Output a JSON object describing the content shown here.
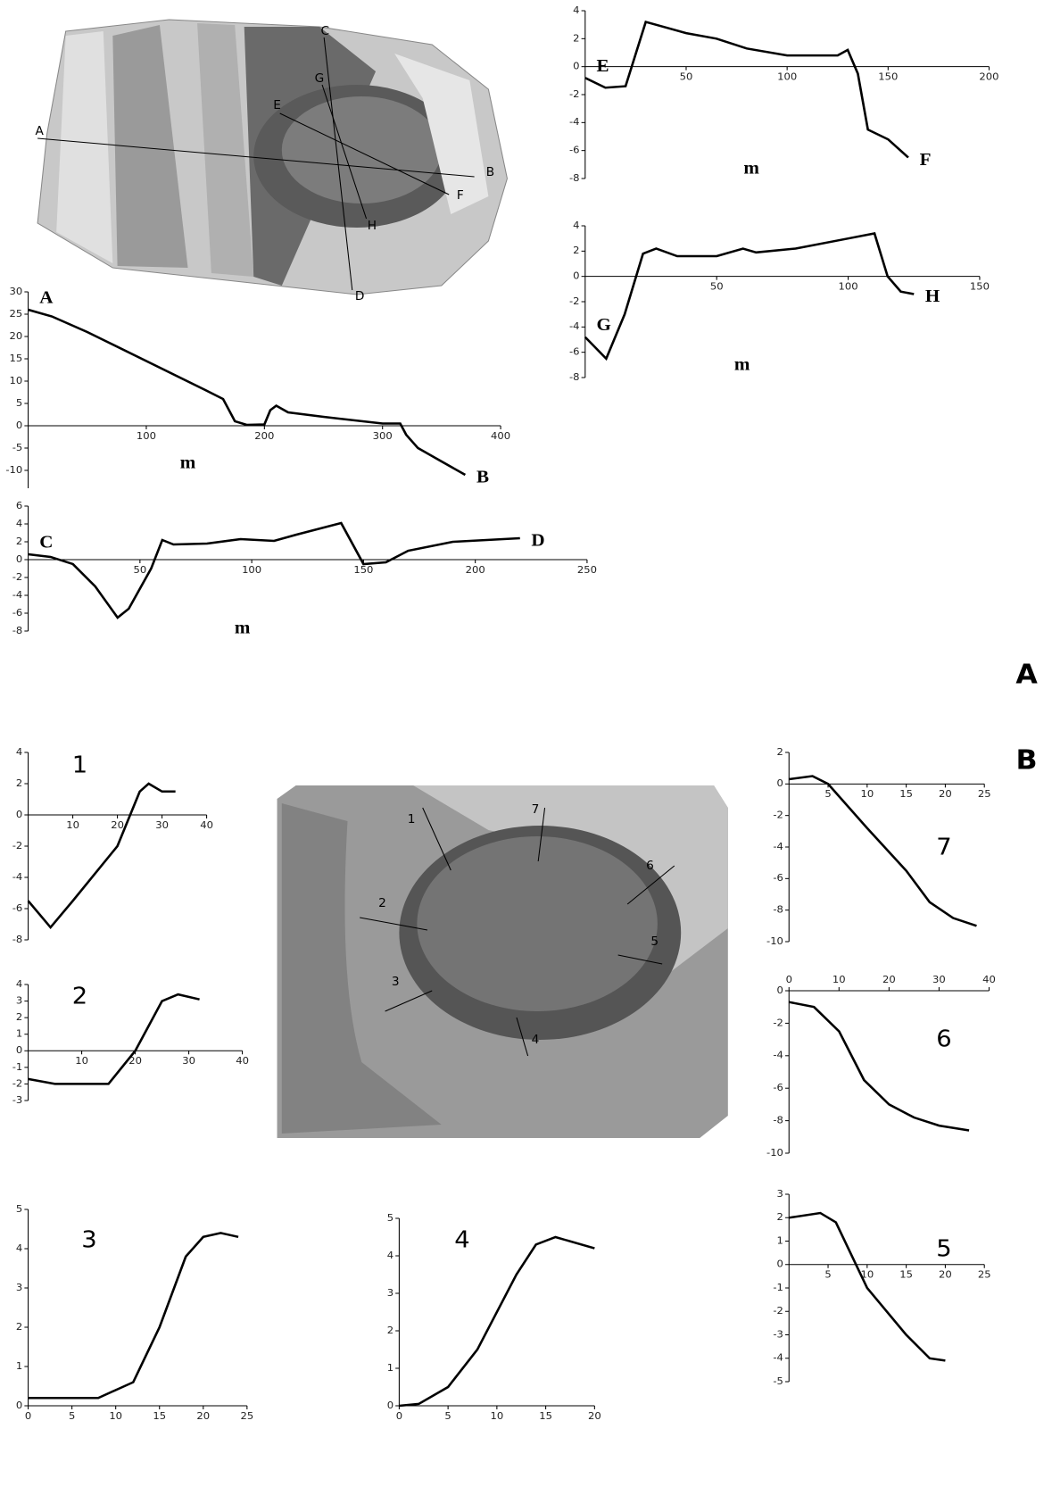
{
  "panel_labels": [
    "A",
    "B"
  ],
  "maps": [
    {
      "labels": [
        "A",
        "B",
        "C",
        "D",
        "E",
        "F",
        "G",
        "H"
      ]
    },
    {
      "labels": [
        "1",
        "2",
        "3",
        "4",
        "5",
        "6",
        "7"
      ]
    }
  ],
  "chart_data": [
    {
      "type": "line",
      "start_label": "A",
      "end_label": "B",
      "xlabel": "m",
      "xlim": [
        0,
        400
      ],
      "ylim": [
        -14,
        30
      ],
      "xticks": [
        100,
        200,
        300,
        400
      ],
      "yticks": [
        30,
        25,
        20,
        15,
        10,
        5,
        0,
        -5,
        -10
      ],
      "x": [
        0,
        20,
        50,
        100,
        150,
        165,
        175,
        185,
        200,
        205,
        210,
        220,
        250,
        300,
        315,
        320,
        330,
        350,
        370
      ],
      "values": [
        26,
        24.5,
        21,
        14.5,
        8,
        6,
        1,
        0.2,
        0.3,
        3.5,
        4.5,
        3,
        2,
        0.5,
        0.5,
        -2,
        -5,
        -8,
        -11
      ]
    },
    {
      "type": "line",
      "start_label": "C",
      "end_label": "D",
      "xlabel": "m",
      "xlim": [
        0,
        250
      ],
      "ylim": [
        -8,
        6
      ],
      "xticks": [
        50,
        100,
        150,
        200,
        250
      ],
      "yticks": [
        6,
        4,
        2,
        0,
        -2,
        -4,
        -6,
        -8
      ],
      "x": [
        0,
        10,
        20,
        30,
        40,
        45,
        55,
        60,
        65,
        80,
        95,
        110,
        120,
        140,
        150,
        160,
        170,
        190,
        220
      ],
      "values": [
        0.6,
        0.3,
        -0.5,
        -3,
        -6.5,
        -5.5,
        -1,
        2.2,
        1.7,
        1.8,
        2.3,
        2.1,
        2.8,
        4.1,
        -0.5,
        -0.3,
        1,
        2,
        2.4
      ]
    },
    {
      "type": "line",
      "start_label": "E",
      "end_label": "F",
      "xlabel": "m",
      "xlim": [
        0,
        200
      ],
      "ylim": [
        -8,
        4
      ],
      "xticks": [
        50,
        100,
        150,
        200
      ],
      "yticks": [
        4,
        2,
        0,
        -2,
        -4,
        -6,
        -8
      ],
      "x": [
        0,
        10,
        20,
        30,
        35,
        50,
        65,
        80,
        100,
        125,
        130,
        135,
        140,
        150,
        160
      ],
      "values": [
        -0.8,
        -1.5,
        -1.4,
        3.2,
        3,
        2.4,
        2,
        1.3,
        0.8,
        0.8,
        1.2,
        -0.5,
        -4.5,
        -5.2,
        -6.5
      ]
    },
    {
      "type": "line",
      "start_label": "G",
      "end_label": "H",
      "xlabel": "m",
      "xlim": [
        0,
        150
      ],
      "ylim": [
        -8,
        4
      ],
      "xticks": [
        50,
        100,
        150
      ],
      "yticks": [
        4,
        2,
        0,
        -2,
        -4,
        -6,
        -8
      ],
      "x": [
        0,
        8,
        15,
        22,
        27,
        35,
        50,
        60,
        65,
        80,
        100,
        110,
        115,
        120,
        125
      ],
      "values": [
        -4.8,
        -6.5,
        -3,
        1.8,
        2.2,
        1.6,
        1.6,
        2.2,
        1.9,
        2.2,
        3,
        3.4,
        0,
        -1.2,
        -1.4
      ]
    },
    {
      "type": "line",
      "label": "1",
      "xlim": [
        0,
        40
      ],
      "ylim": [
        -8,
        4
      ],
      "xticks": [
        10,
        20,
        30,
        40
      ],
      "yticks": [
        4,
        2,
        0,
        -2,
        -4,
        -6,
        -8
      ],
      "x": [
        0,
        5,
        10,
        20,
        25,
        27,
        30,
        33
      ],
      "values": [
        -5.5,
        -7.2,
        -5.5,
        -2,
        1.5,
        2,
        1.5,
        1.5
      ]
    },
    {
      "type": "line",
      "label": "2",
      "xlim": [
        0,
        40
      ],
      "ylim": [
        -3,
        4
      ],
      "xticks": [
        10,
        20,
        30,
        40
      ],
      "yticks": [
        4,
        3,
        2,
        1,
        0,
        -1,
        -2,
        -3
      ],
      "x": [
        0,
        5,
        15,
        20,
        25,
        28,
        32
      ],
      "values": [
        -1.7,
        -2,
        -2,
        0,
        3,
        3.4,
        3.1
      ]
    },
    {
      "type": "line",
      "label": "3",
      "xlim": [
        0,
        25
      ],
      "ylim": [
        0,
        5
      ],
      "xticks": [
        0,
        5,
        10,
        15,
        20,
        25
      ],
      "yticks": [
        5,
        4,
        3,
        2,
        1,
        0
      ],
      "x": [
        0,
        8,
        12,
        15,
        18,
        20,
        22,
        24
      ],
      "values": [
        0.2,
        0.2,
        0.6,
        2,
        3.8,
        4.3,
        4.4,
        4.3
      ]
    },
    {
      "type": "line",
      "label": "4",
      "xlim": [
        0,
        20
      ],
      "ylim": [
        0,
        5
      ],
      "xticks": [
        0,
        5,
        10,
        15,
        20
      ],
      "yticks": [
        5,
        4,
        3,
        2,
        1,
        0
      ],
      "x": [
        0,
        2,
        5,
        8,
        12,
        14,
        16,
        20
      ],
      "values": [
        0,
        0.05,
        0.5,
        1.5,
        3.5,
        4.3,
        4.5,
        4.2
      ]
    },
    {
      "type": "line",
      "label": "7",
      "xlim": [
        0,
        25
      ],
      "ylim": [
        -10,
        2
      ],
      "xticks": [
        5,
        10,
        15,
        20,
        25
      ],
      "yticks": [
        2,
        0,
        -2,
        -4,
        -6,
        -8,
        -10
      ],
      "x": [
        0,
        3,
        5,
        10,
        15,
        18,
        21,
        24
      ],
      "values": [
        0.3,
        0.5,
        0,
        -2.8,
        -5.5,
        -7.5,
        -8.5,
        -9
      ]
    },
    {
      "type": "line",
      "label": "6",
      "xlim": [
        0,
        40
      ],
      "ylim": [
        -10,
        0
      ],
      "xticks": [
        0,
        10,
        20,
        30,
        40
      ],
      "yticks": [
        0,
        -2,
        -4,
        -6,
        -8,
        -10
      ],
      "x": [
        0,
        5,
        10,
        15,
        20,
        25,
        30,
        36
      ],
      "values": [
        -0.7,
        -1,
        -2.5,
        -5.5,
        -7,
        -7.8,
        -8.3,
        -8.6
      ]
    },
    {
      "type": "line",
      "label": "5",
      "xlim": [
        0,
        25
      ],
      "ylim": [
        -5,
        3
      ],
      "xticks": [
        5,
        10,
        15,
        20,
        25
      ],
      "yticks": [
        3,
        2,
        1,
        0,
        -1,
        -2,
        -3,
        -4,
        -5
      ],
      "x": [
        0,
        4,
        6,
        10,
        15,
        18,
        20
      ],
      "values": [
        2,
        2.2,
        1.8,
        -1,
        -3,
        -4,
        -4.1
      ]
    }
  ]
}
